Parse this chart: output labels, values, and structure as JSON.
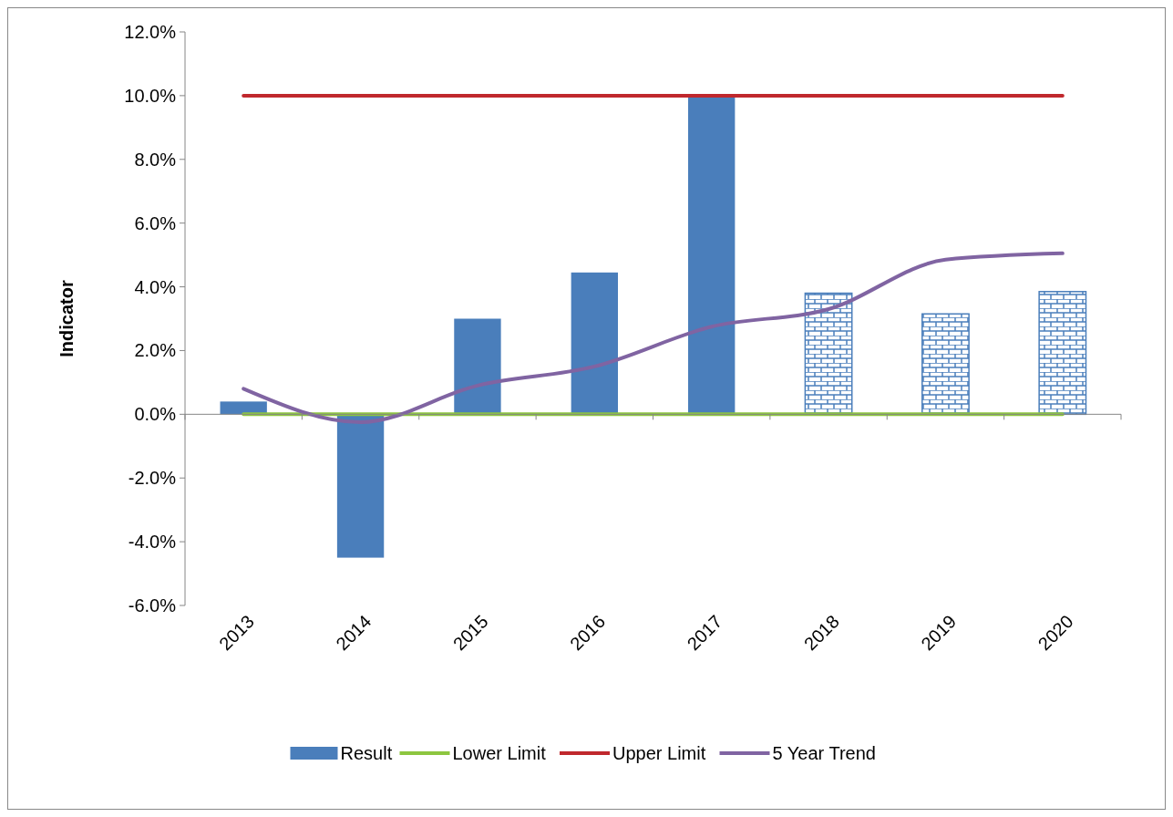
{
  "chart_data": {
    "type": "bar",
    "ylabel": "Indicator",
    "categories": [
      "2013",
      "2014",
      "2015",
      "2016",
      "2017",
      "2018",
      "2019",
      "2020"
    ],
    "series": [
      {
        "name": "Result",
        "color": "#4a7ebb",
        "values": [
          0.4,
          -4.5,
          3.0,
          4.45,
          10.0,
          null,
          null,
          null
        ]
      },
      {
        "color": "#4a7ebb",
        "values": [
          null,
          null,
          null,
          null,
          null,
          3.8,
          3.15,
          3.85
        ]
      },
      {
        "name": "Lower Limit",
        "type": "line",
        "color": "#8dc63f",
        "values": [
          0,
          0,
          0,
          0,
          0,
          0,
          0,
          0
        ]
      },
      {
        "name": "Upper Limit",
        "type": "line",
        "color": "#c0282d",
        "values": [
          10,
          10,
          10,
          10,
          10,
          10,
          10,
          10
        ]
      },
      {
        "name": "5 Year Trend",
        "type": "line",
        "color": "#8064a2",
        "values": [
          0.8,
          -0.25,
          0.9,
          1.5,
          2.75,
          3.3,
          4.85,
          5.05
        ]
      }
    ],
    "ylim": [
      -6,
      12
    ],
    "yticks": [
      {
        "value": -6,
        "label": "-6.0%"
      },
      {
        "value": -4,
        "label": "-4.0%"
      },
      {
        "value": -2,
        "label": "-2.0%"
      },
      {
        "value": 0,
        "label": "0.0%"
      },
      {
        "value": 2,
        "label": "2.0%"
      },
      {
        "value": 4,
        "label": "4.0%"
      },
      {
        "value": 6,
        "label": "6.0%"
      },
      {
        "value": 8,
        "label": "8.0%"
      },
      {
        "value": 10,
        "label": "10.0%"
      },
      {
        "value": 12,
        "label": "12.0%"
      }
    ],
    "legend": "bottom"
  }
}
